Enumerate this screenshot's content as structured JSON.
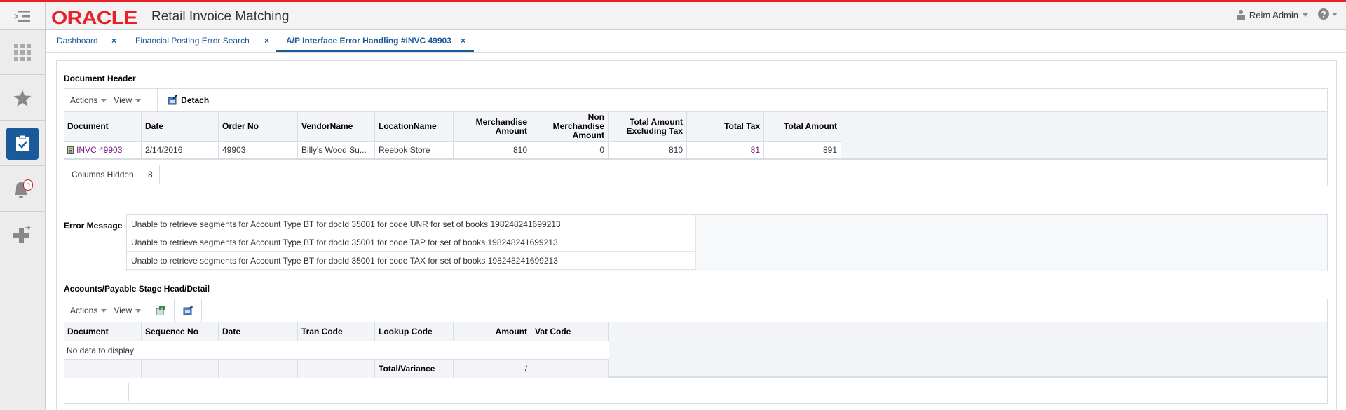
{
  "header": {
    "brand": "ORACLE",
    "app_title": "Retail Invoice Matching",
    "user": "Reim Admin"
  },
  "sidebar": {
    "notification_count": "6"
  },
  "tabs": [
    {
      "label": "Dashboard",
      "active": false
    },
    {
      "label": "Financial Posting Error Search",
      "active": false
    },
    {
      "label": "A/P Interface Error Handling #INVC 49903",
      "active": true
    }
  ],
  "doc_header": {
    "title": "Document Header",
    "actions": "Actions",
    "view": "View",
    "detach": "Detach",
    "columns": [
      "Document",
      "Date",
      "Order No",
      "VendorName",
      "LocationName",
      "Merchandise Amount",
      "Non Merchandise Amount",
      "Total Amount Excluding Tax",
      "Total Tax",
      "Total Amount"
    ],
    "row": [
      "INVC 49903",
      "2/14/2016",
      "49903",
      "Billy's Wood Su...",
      "Reebok Store",
      "810",
      "0",
      "810",
      "81",
      "891"
    ],
    "columns_hidden_label": "Columns Hidden",
    "columns_hidden": "8"
  },
  "error": {
    "label": "Error Message",
    "messages": [
      "Unable to retrieve segments for Account Type BT for docId 35001 for code UNR for set of books 198248241699213",
      "Unable to retrieve segments for Account Type BT for docId 35001 for code TAP for set of books 198248241699213",
      "Unable to retrieve segments for Account Type BT for docId 35001 for code TAX for set of books 198248241699213"
    ]
  },
  "ap_stage": {
    "title": "Accounts/Payable Stage Head/Detail",
    "actions": "Actions",
    "view": "View",
    "columns": [
      "Document",
      "Sequence No",
      "Date",
      "Tran Code",
      "Lookup Code",
      "Amount",
      "Vat Code"
    ],
    "empty": "No data to display",
    "total_label": "Total/Variance",
    "total_value": "/"
  },
  "colors": {
    "brand_red": "#e8202a",
    "accent_blue": "#1b5a99",
    "link_purple": "#7a1a80"
  }
}
